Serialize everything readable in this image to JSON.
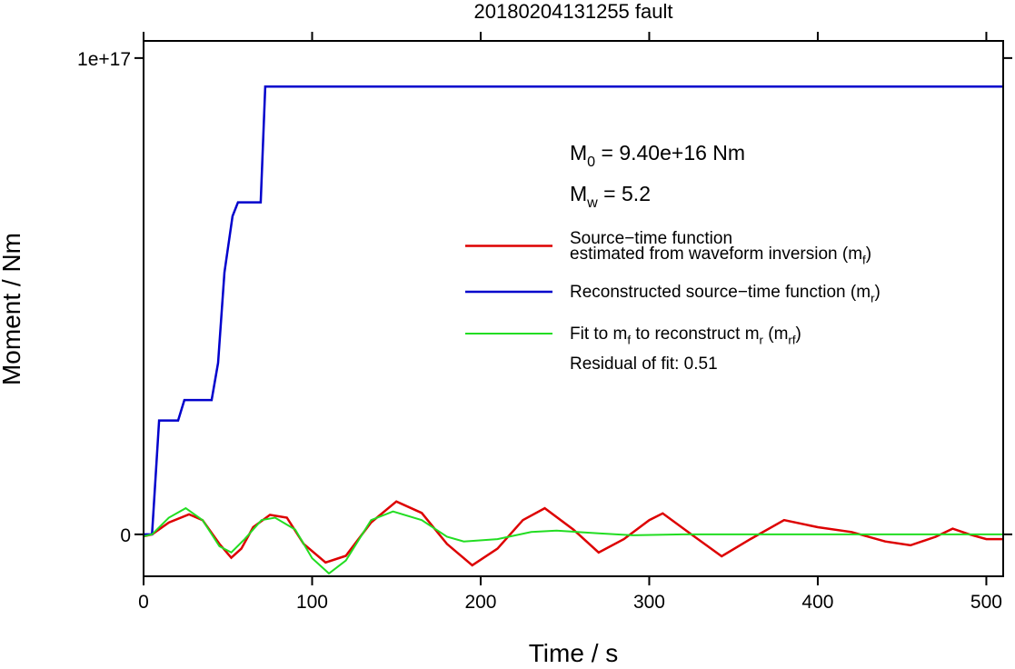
{
  "chart_data": {
    "type": "line",
    "title": "20180204131255 fault",
    "xlabel": "Time / s",
    "ylabel": "Moment / Nm",
    "xlim": [
      0,
      510
    ],
    "ylim": [
      -8800000000000000.0,
      1.036e+17
    ],
    "xticks": [
      0,
      100,
      200,
      300,
      400,
      500
    ],
    "yticks": [
      0,
      {
        "value": 1e+17,
        "label": "1e+17"
      }
    ],
    "annotations": [
      [
        "M",
        "0",
        " = 9.40e+16 Nm"
      ],
      [
        "M",
        "w",
        " = 5.2"
      ],
      [
        "Residual of fit: 0.51"
      ]
    ],
    "series": [
      {
        "name": [
          [
            "Source−time function"
          ],
          [
            "estimated from waveform inversion (m",
            "f",
            ")"
          ]
        ],
        "color": "#dd0000",
        "x": [
          0,
          5,
          15,
          27,
          35,
          45,
          52,
          58,
          65,
          75,
          85,
          95,
          108,
          120,
          135,
          150,
          165,
          180,
          195,
          210,
          225,
          238,
          255,
          270,
          285,
          300,
          308,
          325,
          343,
          360,
          380,
          400,
          420,
          440,
          455,
          470,
          480,
          490,
          500,
          510
        ],
        "values": [
          -400000000000000.0,
          0,
          2500000000000000.0,
          4200000000000000.0,
          3000000000000000.0,
          -2000000000000000.0,
          -4900000000000000.0,
          -3000000000000000.0,
          1500000000000000.0,
          4100000000000000.0,
          3500000000000000.0,
          -2000000000000000.0,
          -5900000000000000.0,
          -4500000000000000.0,
          2500000000000000.0,
          6900000000000000.0,
          4500000000000000.0,
          -2000000000000000.0,
          -6500000000000000.0,
          -3000000000000000.0,
          3000000000000000.0,
          5500000000000000.0,
          1000000000000000.0,
          -3800000000000000.0,
          -1000000000000000.0,
          3000000000000000.0,
          4400000000000000.0,
          0,
          -4600000000000000.0,
          -1000000000000000.0,
          3000000000000000.0,
          1500000000000000.0,
          500000000000000.0,
          -1500000000000000.0,
          -2300000000000000.0,
          -500000000000000.0,
          1200000000000000.0,
          0,
          -1000000000000000.0,
          -1000000000000000.0
        ]
      },
      {
        "name": [
          [
            "Reconstructed source−time function (m",
            "r",
            ")"
          ]
        ],
        "color": "#0000cc",
        "x": [
          0,
          5,
          9.2,
          20.5,
          24.2,
          40.4,
          44.2,
          48,
          52.8,
          56,
          69.5,
          72.2,
          510
        ],
        "values": [
          0,
          0,
          2.39e+16,
          2.39e+16,
          2.82e+16,
          2.82e+16,
          3.6e+16,
          5.5e+16,
          6.68e+16,
          6.97e+16,
          6.97e+16,
          9.4e+16,
          9.4e+16
        ]
      },
      {
        "name": [
          [
            "Fit to m",
            "f",
            " to reconstruct m",
            "r",
            " (m",
            "rf",
            ")"
          ]
        ],
        "color": "#22dd22",
        "x": [
          0,
          5,
          15,
          25,
          35,
          45,
          52,
          60,
          70,
          78,
          90,
          100,
          110,
          120,
          135,
          148,
          165,
          180,
          190,
          210,
          230,
          245,
          270,
          290,
          320,
          510
        ],
        "values": [
          -400000000000000.0,
          0,
          3500000000000000.0,
          5500000000000000.0,
          3000000000000000.0,
          -2500000000000000.0,
          -3800000000000000.0,
          -1000000000000000.0,
          3000000000000000.0,
          3500000000000000.0,
          1000000000000000.0,
          -5000000000000000.0,
          -8200000000000000.0,
          -5500000000000000.0,
          3000000000000000.0,
          4800000000000000.0,
          3000000000000000.0,
          -500000000000000.0,
          -1500000000000000.0,
          -1000000000000000.0,
          500000000000000.0,
          800000000000000.0,
          200000000000000.0,
          -200000000000000.0,
          0,
          0
        ]
      }
    ]
  }
}
